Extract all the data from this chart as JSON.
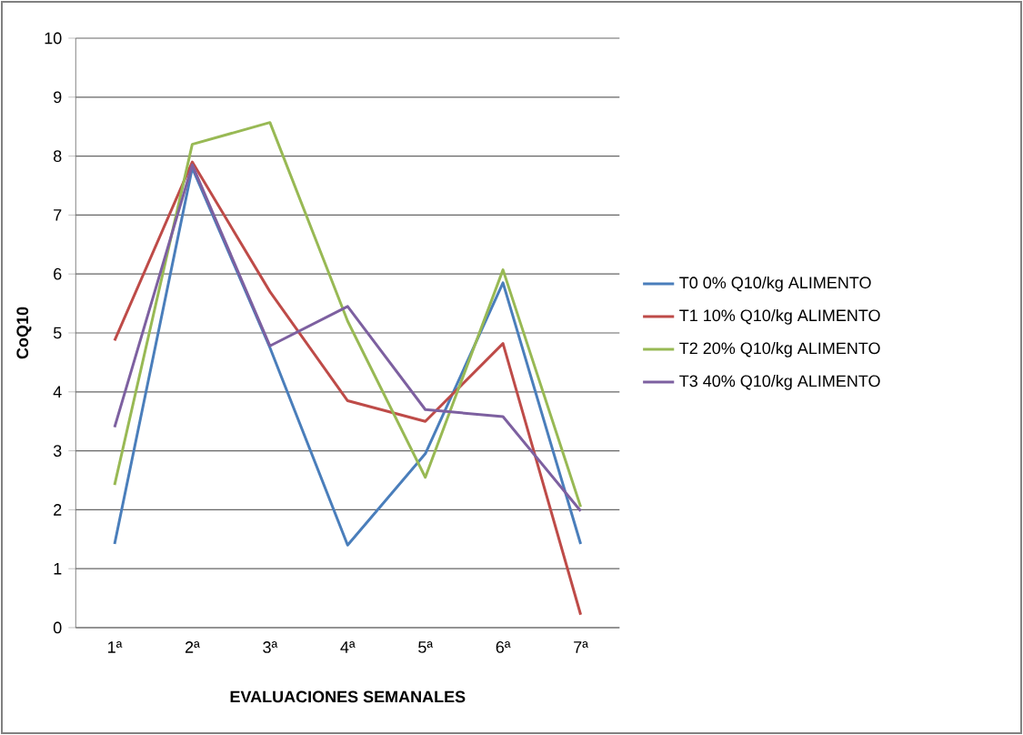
{
  "chart_data": {
    "type": "line",
    "xlabel": "EVALUACIONES SEMANALES",
    "ylabel": "CoQ10",
    "categories": [
      "1ª",
      "2ª",
      "3ª",
      "4ª",
      "5ª",
      "6ª",
      "7ª"
    ],
    "series": [
      {
        "name": "T0 0% Q10/kg ALIMENTO",
        "color": "#4a7ebb",
        "values": [
          1.42,
          7.8,
          4.75,
          1.4,
          2.95,
          5.85,
          1.42
        ]
      },
      {
        "name": "T1 10% Q10/kg ALIMENTO",
        "color": "#be4b48",
        "values": [
          4.87,
          7.9,
          5.7,
          3.85,
          3.5,
          4.82,
          0.22
        ]
      },
      {
        "name": "T2 20% Q10/kg ALIMENTO",
        "color": "#98b954",
        "values": [
          2.42,
          8.2,
          8.57,
          5.2,
          2.55,
          6.07,
          2.05
        ]
      },
      {
        "name": "T3 40% Q10/kg ALIMENTO",
        "color": "#7d60a0",
        "values": [
          3.4,
          7.85,
          4.78,
          5.45,
          3.7,
          3.58,
          1.98
        ]
      }
    ],
    "ylim": [
      0,
      10
    ],
    "yticks": [
      0,
      1,
      2,
      3,
      4,
      5,
      6,
      7,
      8,
      9,
      10
    ],
    "grid": "y",
    "legend": "right",
    "marker": "none",
    "line_style": "solid"
  }
}
